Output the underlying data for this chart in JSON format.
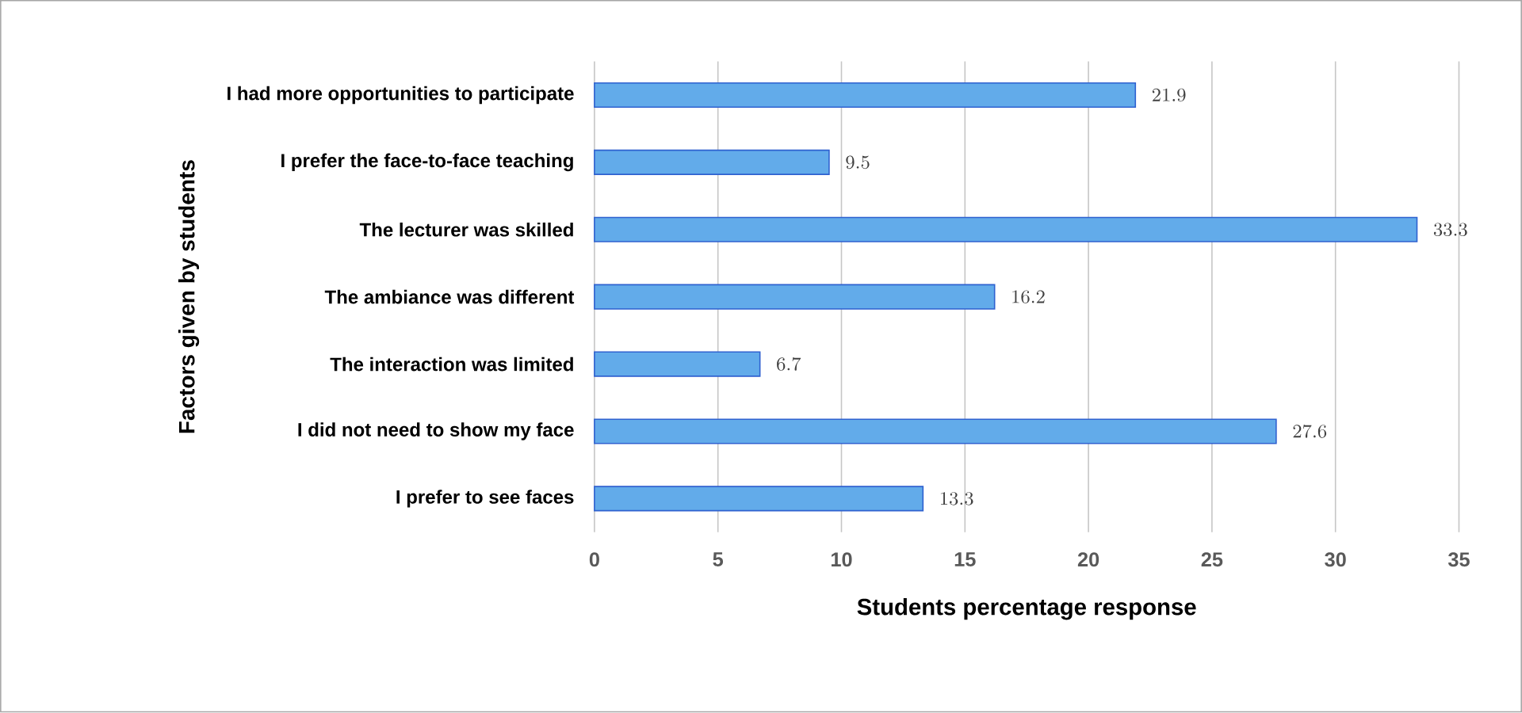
{
  "chart_data": {
    "type": "bar",
    "orientation": "horizontal",
    "xlabel": "Students percentage response",
    "ylabel": "Factors given by students",
    "categories": [
      "I had more opportunities to participate",
      "I prefer the face-to-face teaching",
      "The lecturer was skilled",
      "The ambiance was different",
      "The interaction was limited",
      "I did not need to show my face",
      "I prefer to see faces"
    ],
    "values": [
      21.9,
      9.5,
      33.3,
      16.2,
      6.7,
      27.6,
      13.3
    ],
    "color": "#62abea",
    "xlim": [
      0,
      35
    ],
    "xticks": [
      0,
      5,
      10,
      15,
      20,
      25,
      30,
      35
    ],
    "grid": "x",
    "data_labels": true
  }
}
